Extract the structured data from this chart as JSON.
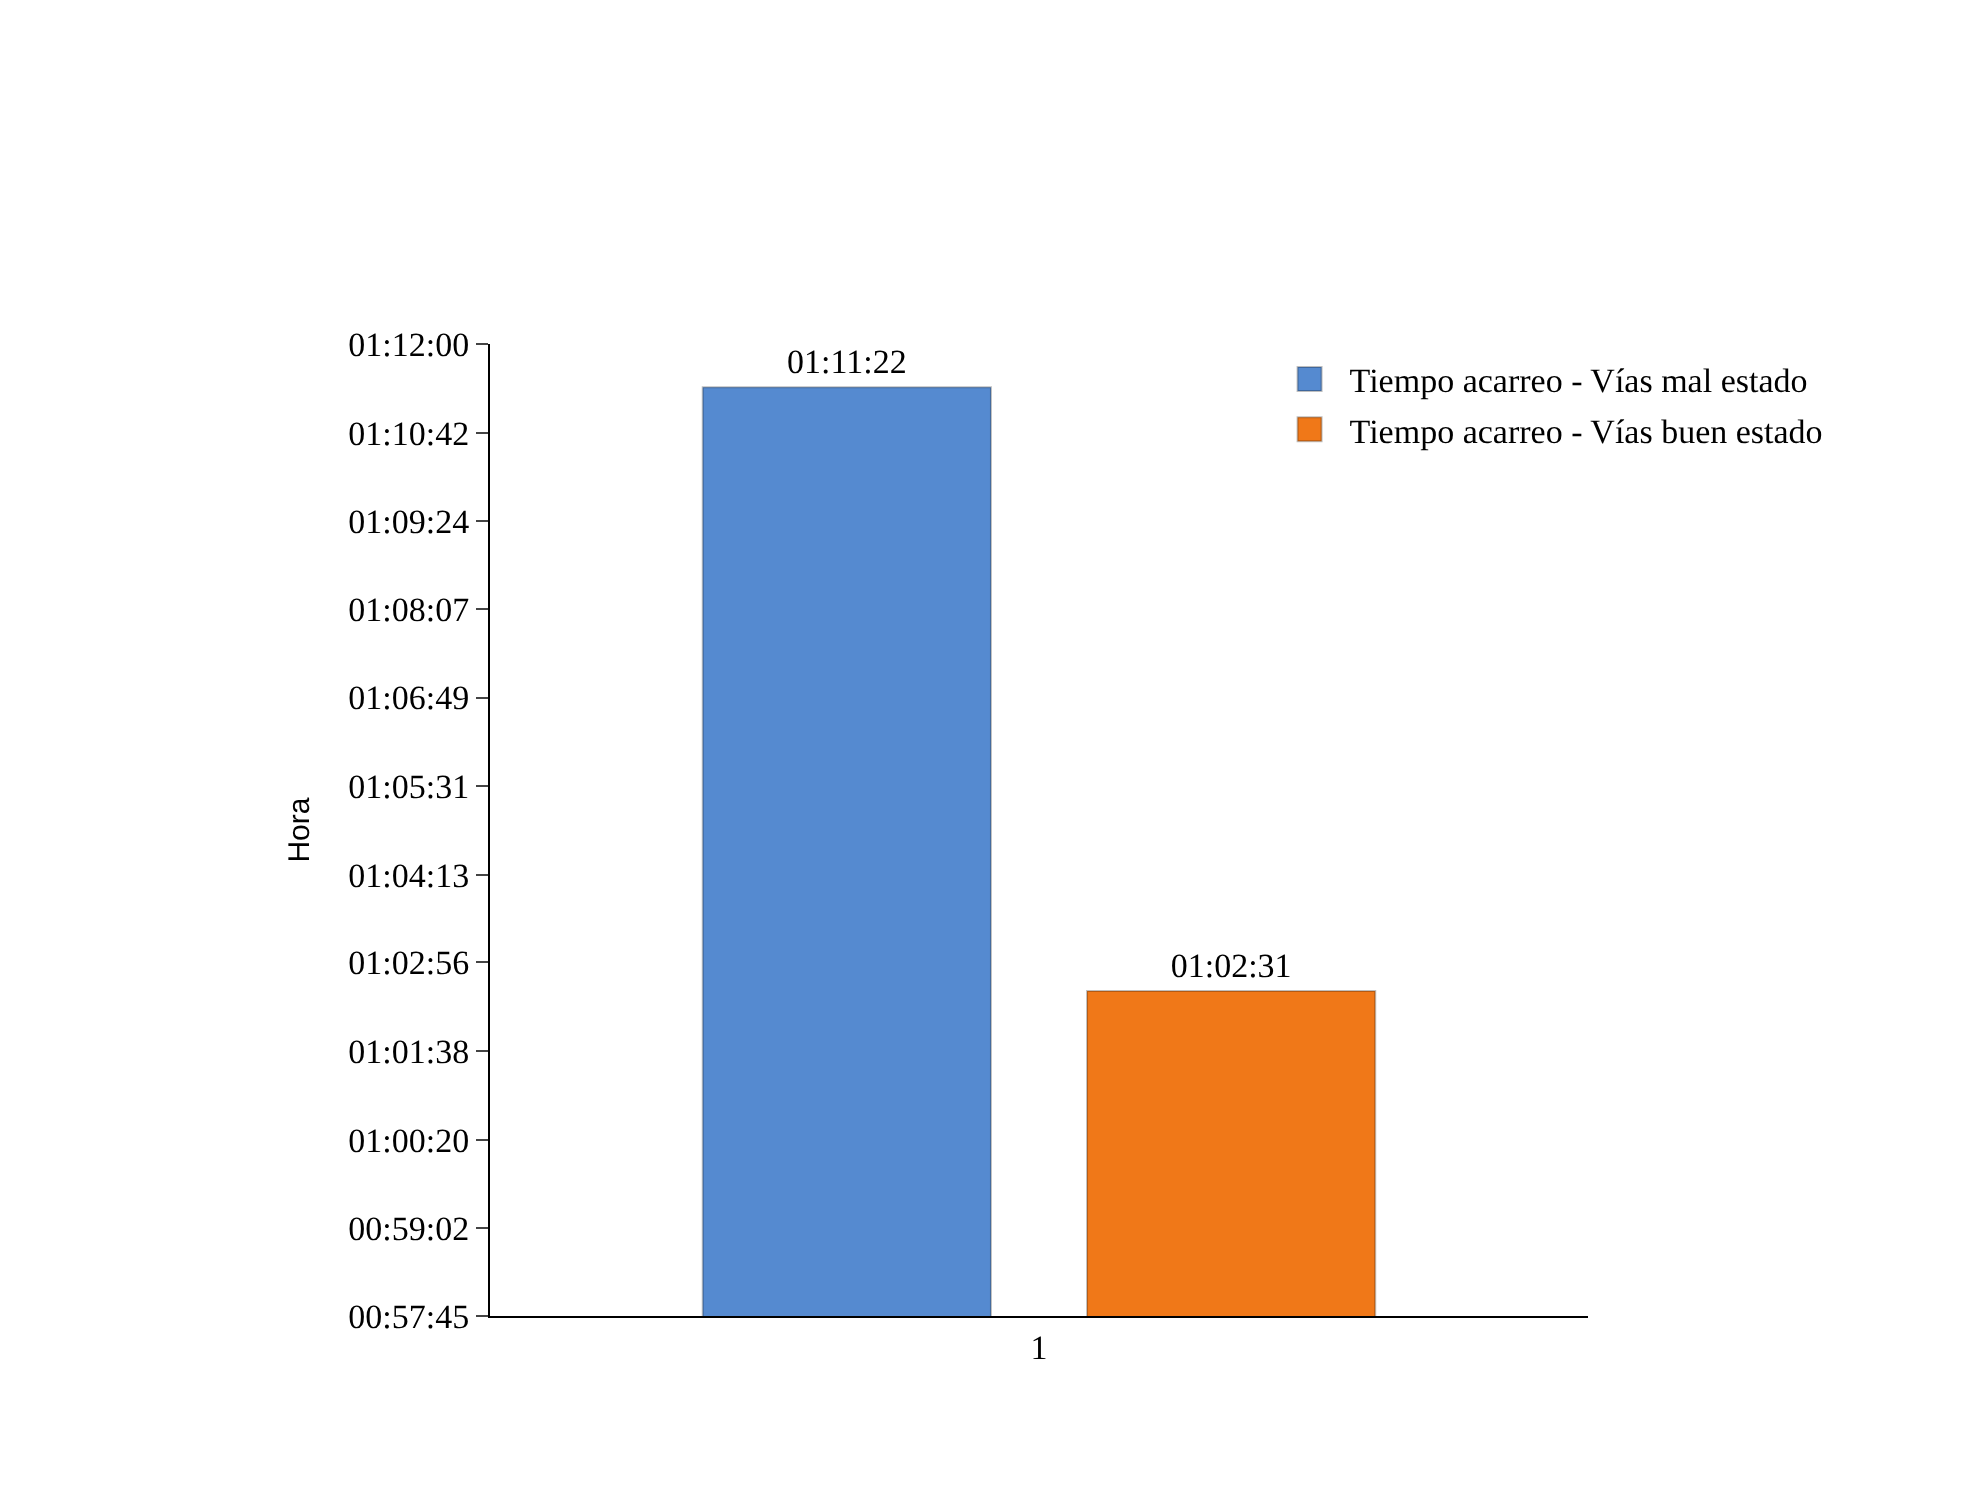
{
  "chart_data": {
    "type": "bar",
    "ylabel": "Hora",
    "categories": [
      "1"
    ],
    "series": [
      {
        "name": "Tiempo acarreo - Vías mal estado",
        "color": "#558ad0",
        "values": [
          1.18944
        ],
        "value_labels": [
          "01:11:22"
        ]
      },
      {
        "name": "Tiempo acarreo - Vías buen estado",
        "color": "#f07818",
        "values": [
          1.04194
        ],
        "value_labels": [
          "01:02:31"
        ]
      }
    ],
    "ylim": [
      0.9625,
      1.2
    ],
    "yticks": [
      {
        "value": 0.9625,
        "label": "00:57:45"
      },
      {
        "value": 0.98389,
        "label": "00:59:02"
      },
      {
        "value": 1.00556,
        "label": "01:00:20"
      },
      {
        "value": 1.02722,
        "label": "01:01:38"
      },
      {
        "value": 1.04889,
        "label": "01:02:56"
      },
      {
        "value": 1.07028,
        "label": "01:04:13"
      },
      {
        "value": 1.09194,
        "label": "01:05:31"
      },
      {
        "value": 1.11361,
        "label": "01:06:49"
      },
      {
        "value": 1.13528,
        "label": "01:08:07"
      },
      {
        "value": 1.15667,
        "label": "01:09:24"
      },
      {
        "value": 1.17833,
        "label": "01:10:42"
      },
      {
        "value": 1.2,
        "label": "01:12:00"
      }
    ],
    "legend": "top right"
  }
}
